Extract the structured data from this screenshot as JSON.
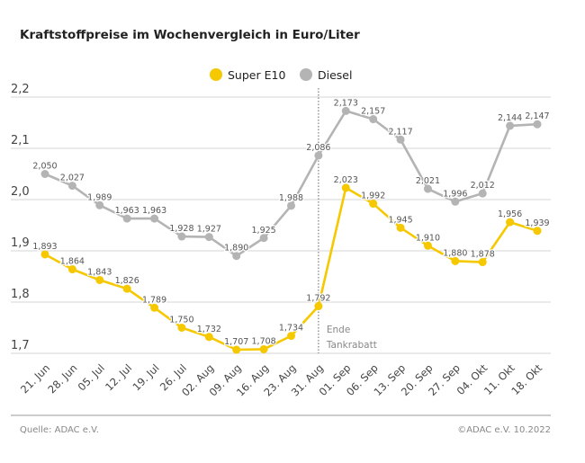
{
  "chart_data": {
    "type": "line",
    "title": "Kraftstoffpreise im Wochenvergleich in Euro/Liter",
    "categories": [
      "21. Jun",
      "28. Jun",
      "05. Jul",
      "12. Jul",
      "19. Jul",
      "26. Jul",
      "02. Aug",
      "09. Aug",
      "16. Aug",
      "23. Aug",
      "31. Aug",
      "01. Sep",
      "06. Sep",
      "13. Sep",
      "20. Sep",
      "27. Sep",
      "04. Okt",
      "11. Okt",
      "18. Okt"
    ],
    "series": [
      {
        "name": "Super E10",
        "color": "#f5c800",
        "values": [
          1.893,
          1.864,
          1.843,
          1.826,
          1.789,
          1.75,
          1.732,
          1.707,
          1.708,
          1.734,
          1.792,
          2.023,
          1.992,
          1.945,
          1.91,
          1.88,
          1.878,
          1.956,
          1.939
        ]
      },
      {
        "name": "Diesel",
        "color": "#b4b4b4",
        "values": [
          2.05,
          2.027,
          1.989,
          1.963,
          1.963,
          1.928,
          1.927,
          1.89,
          1.925,
          1.988,
          2.086,
          2.173,
          2.157,
          2.117,
          2.021,
          1.996,
          2.012,
          2.144,
          2.147
        ]
      }
    ],
    "yticks": [
      "1,7",
      "1,8",
      "1,9",
      "2,0",
      "2,1",
      "2,2"
    ],
    "ylim": [
      1.7,
      2.2
    ],
    "grid": true,
    "legend": "top-center",
    "annotation": {
      "category": "31. Aug",
      "lines": [
        "Ende",
        "Tankrabatt"
      ]
    }
  },
  "footer": {
    "source": "Quelle: ADAC e.V.",
    "copyright": "©ADAC e.V.  10.2022"
  }
}
